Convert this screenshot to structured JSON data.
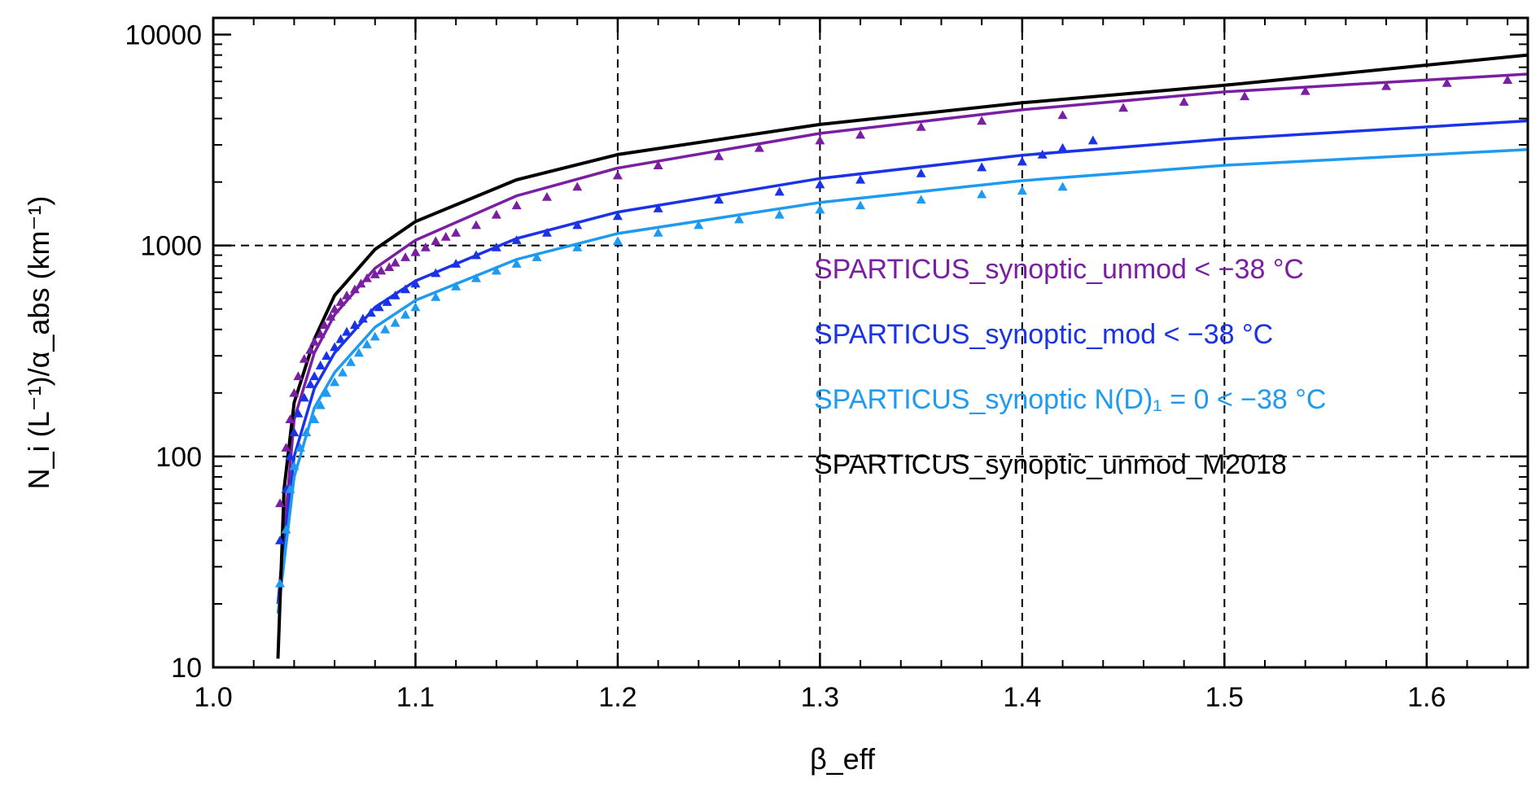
{
  "chart_data": {
    "type": "scatter",
    "title": "",
    "xlabel": "β_eff",
    "ylabel": "N_i (L⁻¹)/α_abs (km⁻¹)",
    "xlim": [
      1.0,
      1.65
    ],
    "ylim": [
      10,
      12000
    ],
    "yscale": "log",
    "grid": "dashed at x = 1.1, 1.2, 1.3, 1.4, 1.5, 1.6 and y = 100, 1000",
    "legend_position": "center-right",
    "x_ticks": [
      "1.0",
      "1.1",
      "1.2",
      "1.3",
      "1.4",
      "1.5",
      "1.6"
    ],
    "y_ticks": [
      "10",
      "100",
      "1000",
      "10000"
    ],
    "series": [
      {
        "name": "SPARTICUS_synoptic_unmod < −38 °C",
        "color": "#7a1fa2",
        "fit_curve": {
          "x": [
            1.032,
            1.04,
            1.05,
            1.06,
            1.08,
            1.1,
            1.15,
            1.2,
            1.3,
            1.4,
            1.5,
            1.65
          ],
          "y": [
            20,
            150,
            310,
            470,
            780,
            1060,
            1720,
            2330,
            3400,
            4400,
            5350,
            6500
          ]
        },
        "points": {
          "x": [
            1.033,
            1.036,
            1.038,
            1.04,
            1.042,
            1.045,
            1.048,
            1.05,
            1.053,
            1.055,
            1.058,
            1.06,
            1.063,
            1.066,
            1.07,
            1.073,
            1.076,
            1.08,
            1.083,
            1.087,
            1.09,
            1.095,
            1.1,
            1.105,
            1.11,
            1.115,
            1.12,
            1.13,
            1.14,
            1.15,
            1.165,
            1.18,
            1.2,
            1.22,
            1.25,
            1.27,
            1.3,
            1.32,
            1.35,
            1.38,
            1.42,
            1.45,
            1.48,
            1.51,
            1.54,
            1.58,
            1.61,
            1.64
          ],
          "y": [
            60,
            110,
            150,
            200,
            240,
            290,
            320,
            350,
            380,
            420,
            460,
            500,
            540,
            580,
            620,
            660,
            700,
            730,
            760,
            790,
            830,
            880,
            930,
            980,
            1050,
            1100,
            1150,
            1250,
            1400,
            1550,
            1700,
            1900,
            2150,
            2400,
            2650,
            2900,
            3150,
            3350,
            3650,
            3900,
            4150,
            4500,
            4800,
            5100,
            5400,
            5700,
            5900,
            6100
          ]
        }
      },
      {
        "name": "SPARTICUS_synoptic_mod < −38 °C",
        "color": "#1a33e6",
        "fit_curve": {
          "x": [
            1.032,
            1.04,
            1.05,
            1.06,
            1.08,
            1.1,
            1.15,
            1.2,
            1.3,
            1.4,
            1.5,
            1.65
          ],
          "y": [
            20,
            100,
            210,
            310,
            510,
            680,
            1080,
            1440,
            2080,
            2680,
            3200,
            3900
          ]
        },
        "points": {
          "x": [
            1.033,
            1.036,
            1.038,
            1.04,
            1.042,
            1.045,
            1.048,
            1.05,
            1.053,
            1.056,
            1.06,
            1.063,
            1.066,
            1.07,
            1.074,
            1.078,
            1.082,
            1.086,
            1.09,
            1.095,
            1.1,
            1.11,
            1.12,
            1.13,
            1.14,
            1.15,
            1.165,
            1.18,
            1.2,
            1.22,
            1.25,
            1.28,
            1.3,
            1.32,
            1.35,
            1.38,
            1.4,
            1.41,
            1.42,
            1.435
          ],
          "y": [
            40,
            70,
            100,
            130,
            160,
            190,
            220,
            240,
            270,
            300,
            330,
            360,
            390,
            420,
            450,
            480,
            510,
            540,
            580,
            620,
            660,
            740,
            820,
            900,
            980,
            1060,
            1150,
            1250,
            1380,
            1500,
            1650,
            1800,
            1950,
            2050,
            2200,
            2350,
            2500,
            2700,
            2900,
            3150
          ]
        }
      },
      {
        "name": "SPARTICUS_synoptic N(D)₁ = 0 < −38 °C",
        "color": "#1e9af0",
        "fit_curve": {
          "x": [
            1.032,
            1.04,
            1.05,
            1.06,
            1.08,
            1.1,
            1.15,
            1.2,
            1.3,
            1.4,
            1.5,
            1.65
          ],
          "y": [
            18,
            80,
            170,
            250,
            410,
            550,
            860,
            1140,
            1600,
            2030,
            2400,
            2850
          ]
        },
        "points": {
          "x": [
            1.033,
            1.036,
            1.038,
            1.04,
            1.043,
            1.046,
            1.05,
            1.053,
            1.056,
            1.06,
            1.064,
            1.068,
            1.072,
            1.076,
            1.08,
            1.085,
            1.09,
            1.095,
            1.1,
            1.11,
            1.12,
            1.13,
            1.14,
            1.15,
            1.16,
            1.18,
            1.2,
            1.22,
            1.24,
            1.26,
            1.28,
            1.3,
            1.32,
            1.35,
            1.38,
            1.4,
            1.42
          ],
          "y": [
            25,
            45,
            70,
            90,
            110,
            130,
            150,
            175,
            200,
            225,
            250,
            280,
            310,
            340,
            370,
            400,
            430,
            470,
            510,
            570,
            640,
            700,
            760,
            820,
            880,
            980,
            1050,
            1150,
            1250,
            1330,
            1400,
            1480,
            1550,
            1650,
            1750,
            1820,
            1900
          ]
        }
      },
      {
        "name": "SPARTICUS_synoptic_unmod_M2018",
        "color": "#000000",
        "fit_curve": {
          "x": [
            1.032,
            1.035,
            1.04,
            1.05,
            1.06,
            1.08,
            1.1,
            1.15,
            1.2,
            1.3,
            1.4,
            1.5,
            1.65
          ],
          "y": [
            11,
            70,
            180,
            360,
            580,
            960,
            1300,
            2050,
            2700,
            3750,
            4750,
            5750,
            8000
          ]
        },
        "points": {
          "x": [],
          "y": []
        }
      }
    ]
  }
}
